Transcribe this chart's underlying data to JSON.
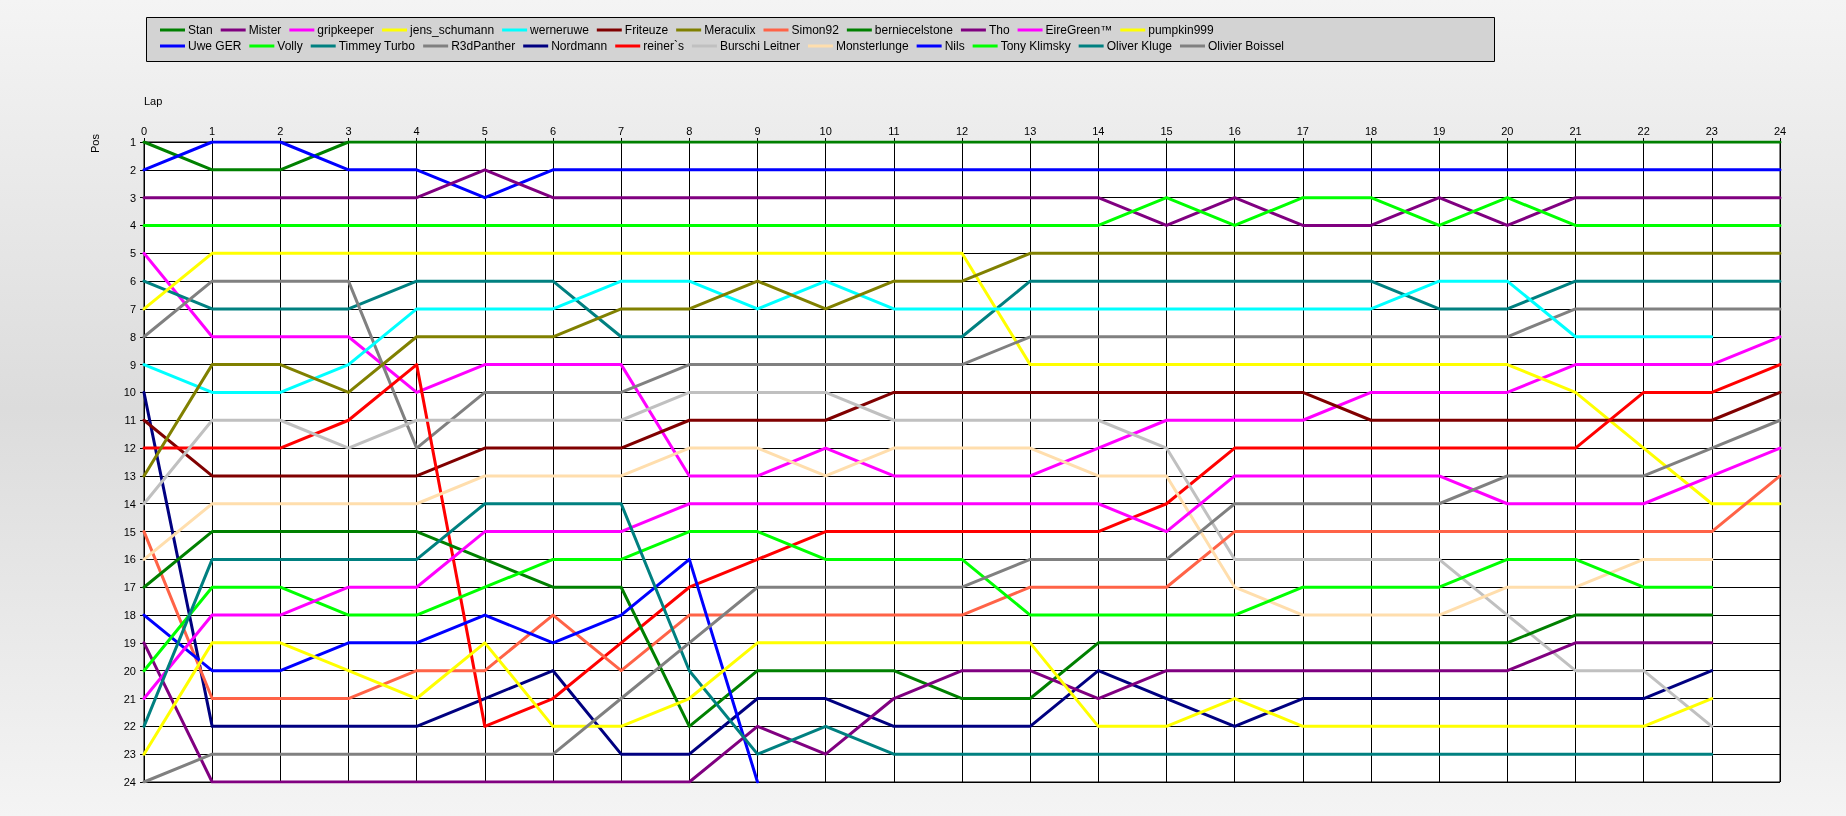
{
  "chart_data": {
    "type": "line",
    "xlabel": "Lap",
    "ylabel": "Pos",
    "x": [
      0,
      1,
      2,
      3,
      4,
      5,
      6,
      7,
      8,
      9,
      10,
      11,
      12,
      13,
      14,
      15,
      16,
      17,
      18,
      19,
      20,
      21,
      22,
      23,
      24
    ],
    "xlim": [
      0,
      24
    ],
    "xticks": [
      0,
      1,
      2,
      3,
      4,
      5,
      6,
      7,
      8,
      9,
      10,
      11,
      12,
      13,
      14,
      15,
      16,
      17,
      18,
      19,
      20,
      21,
      22,
      23,
      24
    ],
    "ylim": [
      24,
      1
    ],
    "yticks": [
      1,
      2,
      3,
      4,
      5,
      6,
      7,
      8,
      9,
      10,
      11,
      12,
      13,
      14,
      15,
      16,
      17,
      18,
      19,
      20,
      21,
      22,
      23,
      24
    ],
    "grid": true,
    "legend": "top",
    "marker": "none",
    "line_style": "solid",
    "series": [
      {
        "name": "Stan",
        "color": "#008000",
        "values": [
          1,
          2,
          2,
          1,
          1,
          1,
          1,
          1,
          1,
          1,
          1,
          1,
          1,
          1,
          1,
          1,
          1,
          1,
          1,
          1,
          1,
          1,
          1,
          1,
          1
        ]
      },
      {
        "name": "Uwe GER",
        "color": "#0000ff",
        "values": [
          2,
          1,
          1,
          2,
          2,
          3,
          2,
          2,
          2,
          2,
          2,
          2,
          2,
          2,
          2,
          2,
          2,
          2,
          2,
          2,
          2,
          2,
          2,
          2,
          2
        ]
      },
      {
        "name": "Mister",
        "color": "#800080",
        "values": [
          3,
          3,
          3,
          3,
          3,
          2,
          3,
          3,
          3,
          3,
          3,
          3,
          3,
          3,
          3,
          4,
          3,
          4,
          4,
          3,
          4,
          3,
          3,
          3,
          3
        ]
      },
      {
        "name": "Volly",
        "color": "#00ff00",
        "values": [
          4,
          4,
          4,
          4,
          4,
          4,
          4,
          4,
          4,
          4,
          4,
          4,
          4,
          4,
          4,
          3,
          4,
          3,
          3,
          4,
          3,
          4,
          4,
          4,
          4
        ]
      },
      {
        "name": "gripkeeper",
        "color": "#ff00ff",
        "values": [
          5,
          8,
          8,
          8,
          10,
          9,
          9,
          9,
          13,
          13,
          12,
          13,
          13,
          13,
          12,
          11,
          11,
          11,
          10,
          10,
          10,
          9,
          9,
          9,
          8
        ]
      },
      {
        "name": "Timmey Turbo",
        "color": "#008080",
        "values": [
          6,
          7,
          7,
          7,
          6,
          6,
          6,
          8,
          8,
          8,
          8,
          8,
          8,
          6,
          6,
          6,
          6,
          6,
          6,
          7,
          7,
          6,
          6,
          6,
          6
        ]
      },
      {
        "name": "jens_schumann",
        "color": "#ffff00",
        "values": [
          7,
          5,
          5,
          5,
          5,
          5,
          5,
          5,
          5,
          5,
          5,
          5,
          5,
          9,
          9,
          9,
          9,
          9,
          9,
          9,
          9,
          10,
          12,
          14,
          14
        ]
      },
      {
        "name": "R3dPanther",
        "color": "#808080",
        "values": [
          8,
          6,
          6,
          6,
          12,
          10,
          10,
          10,
          9,
          9,
          9,
          9,
          9,
          8,
          8,
          8,
          8,
          8,
          8,
          8,
          8,
          7,
          7,
          7,
          7
        ]
      },
      {
        "name": "werneruwe",
        "color": "#00ffff",
        "values": [
          9,
          10,
          10,
          9,
          7,
          7,
          7,
          6,
          6,
          7,
          6,
          7,
          7,
          7,
          7,
          7,
          7,
          7,
          7,
          6,
          6,
          8,
          8,
          8,
          null
        ]
      },
      {
        "name": "Nordmann",
        "color": "#000080",
        "values": [
          10,
          22,
          22,
          22,
          22,
          21,
          20,
          23,
          23,
          21,
          21,
          22,
          22,
          22,
          20,
          21,
          22,
          21,
          21,
          21,
          21,
          21,
          21,
          20,
          null
        ]
      },
      {
        "name": "Friteuze",
        "color": "#800000",
        "values": [
          11,
          13,
          13,
          13,
          13,
          12,
          12,
          12,
          11,
          11,
          11,
          10,
          10,
          10,
          10,
          10,
          10,
          10,
          11,
          11,
          11,
          11,
          11,
          11,
          10
        ]
      },
      {
        "name": "reiner`s",
        "color": "#ff0000",
        "values": [
          12,
          12,
          12,
          11,
          9,
          22,
          21,
          19,
          17,
          16,
          15,
          15,
          15,
          15,
          15,
          14,
          12,
          12,
          12,
          12,
          12,
          12,
          10,
          10,
          9
        ]
      },
      {
        "name": "Meraculix",
        "color": "#808000",
        "values": [
          13,
          9,
          9,
          10,
          8,
          8,
          8,
          7,
          7,
          6,
          7,
          6,
          6,
          5,
          5,
          5,
          5,
          5,
          5,
          5,
          5,
          5,
          5,
          5,
          5
        ]
      },
      {
        "name": "Burschi Leitner",
        "color": "#c0c0c0",
        "values": [
          14,
          11,
          11,
          12,
          11,
          11,
          11,
          11,
          10,
          10,
          10,
          11,
          11,
          11,
          11,
          12,
          16,
          16,
          16,
          16,
          18,
          20,
          20,
          22,
          null
        ]
      },
      {
        "name": "Simon92",
        "color": "#ff6347",
        "values": [
          15,
          21,
          21,
          21,
          20,
          20,
          18,
          20,
          18,
          18,
          18,
          18,
          18,
          17,
          17,
          17,
          15,
          15,
          15,
          15,
          15,
          15,
          15,
          15,
          13
        ]
      },
      {
        "name": "Monsterlunge",
        "color": "#ffdead",
        "values": [
          16,
          14,
          14,
          14,
          14,
          13,
          13,
          13,
          12,
          12,
          13,
          12,
          12,
          12,
          13,
          13,
          17,
          18,
          18,
          18,
          17,
          17,
          16,
          16,
          null
        ]
      },
      {
        "name": "berniecelstone",
        "color": "#008000",
        "values": [
          17,
          15,
          15,
          15,
          15,
          16,
          17,
          17,
          22,
          20,
          20,
          20,
          21,
          21,
          19,
          19,
          19,
          19,
          19,
          19,
          19,
          18,
          18,
          18,
          null
        ]
      },
      {
        "name": "Nils",
        "color": "#0000ff",
        "values": [
          18,
          20,
          20,
          19,
          19,
          18,
          19,
          18,
          16,
          24,
          null,
          null,
          null,
          null,
          null,
          null,
          null,
          null,
          null,
          null,
          null,
          null,
          null,
          null,
          null
        ]
      },
      {
        "name": "Tho",
        "color": "#800080",
        "values": [
          19,
          24,
          24,
          24,
          24,
          24,
          24,
          24,
          24,
          22,
          23,
          21,
          20,
          20,
          21,
          20,
          20,
          20,
          20,
          20,
          20,
          19,
          19,
          19,
          null
        ]
      },
      {
        "name": "Tony Klimsky",
        "color": "#00ff00",
        "values": [
          20,
          17,
          17,
          18,
          18,
          17,
          16,
          16,
          15,
          15,
          16,
          16,
          16,
          18,
          18,
          18,
          18,
          17,
          17,
          17,
          16,
          16,
          17,
          17,
          null
        ]
      },
      {
        "name": "EireGreen™",
        "color": "#ff00ff",
        "values": [
          21,
          18,
          18,
          17,
          17,
          15,
          15,
          15,
          14,
          14,
          14,
          14,
          14,
          14,
          14,
          15,
          13,
          13,
          13,
          13,
          14,
          14,
          14,
          13,
          12
        ]
      },
      {
        "name": "Oliver Kluge",
        "color": "#008080",
        "values": [
          22,
          16,
          16,
          16,
          16,
          14,
          14,
          14,
          20,
          23,
          22,
          23,
          23,
          23,
          23,
          23,
          23,
          23,
          23,
          23,
          23,
          23,
          23,
          23,
          null
        ]
      },
      {
        "name": "pumpkin999",
        "color": "#ffff00",
        "values": [
          23,
          19,
          19,
          20,
          21,
          19,
          22,
          22,
          21,
          19,
          19,
          19,
          19,
          19,
          22,
          22,
          21,
          22,
          22,
          22,
          22,
          22,
          22,
          21,
          null
        ]
      },
      {
        "name": "Olivier Boissel",
        "color": "#808080",
        "values": [
          24,
          23,
          23,
          23,
          23,
          23,
          23,
          21,
          19,
          17,
          17,
          17,
          17,
          16,
          16,
          16,
          14,
          14,
          14,
          14,
          13,
          13,
          13,
          12,
          11
        ]
      }
    ]
  }
}
